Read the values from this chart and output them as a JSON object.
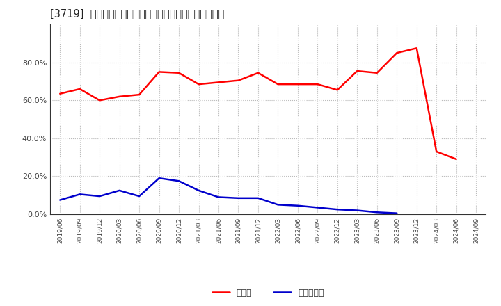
{
  "title": "[3719]  現預金、有利子負債の総資産に対する比率の推移",
  "x_labels": [
    "2019/06",
    "2019/09",
    "2019/12",
    "2020/03",
    "2020/06",
    "2020/09",
    "2020/12",
    "2021/03",
    "2021/06",
    "2021/09",
    "2021/12",
    "2022/03",
    "2022/06",
    "2022/09",
    "2022/12",
    "2023/03",
    "2023/06",
    "2023/09",
    "2023/12",
    "2024/03",
    "2024/06",
    "2024/09"
  ],
  "cash_values": [
    63.5,
    66.0,
    60.0,
    62.0,
    63.0,
    75.0,
    74.5,
    68.5,
    69.5,
    70.5,
    74.5,
    68.5,
    68.5,
    68.5,
    65.5,
    75.5,
    74.5,
    85.0,
    87.5,
    33.0,
    29.0,
    null
  ],
  "debt_values": [
    7.5,
    10.5,
    9.5,
    12.5,
    9.5,
    19.0,
    17.5,
    12.5,
    9.0,
    8.5,
    8.5,
    5.0,
    4.5,
    3.5,
    2.5,
    2.0,
    1.0,
    0.5,
    null,
    null,
    null,
    null
  ],
  "cash_color": "#ff0000",
  "debt_color": "#0000cc",
  "background_color": "#ffffff",
  "grid_color": "#aaaaaa",
  "legend_cash": "現預金",
  "legend_debt": "有利子負債",
  "ylim": [
    0,
    100
  ],
  "yticks": [
    0,
    20,
    40,
    60,
    80
  ],
  "ytick_labels": [
    "0.0%",
    "20.0%",
    "40.0%",
    "60.0%",
    "80.0%"
  ]
}
